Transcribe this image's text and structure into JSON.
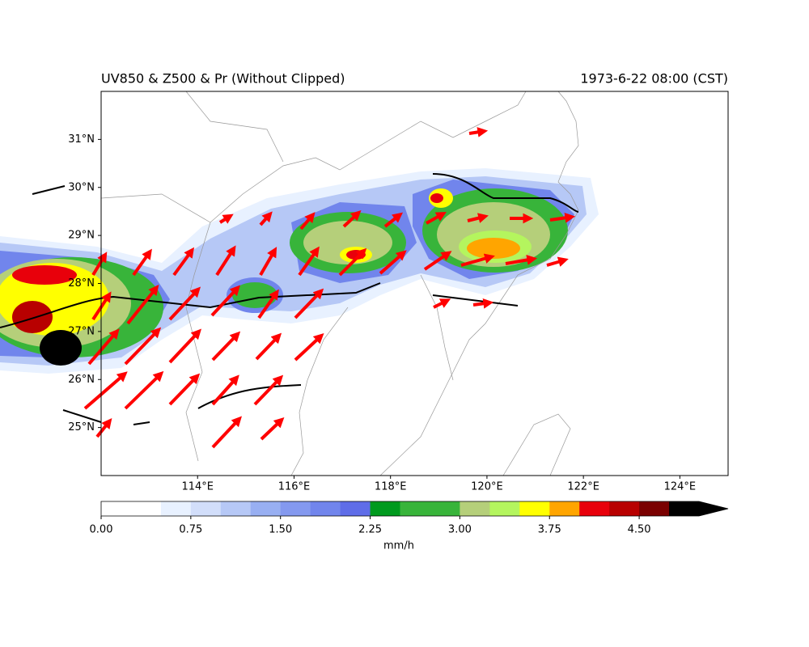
{
  "map": {
    "title_left": "UV850 & Z500 & Pr (Without Clipped)",
    "title_right": "1973-6-22 08:00 (CST)",
    "xlim": [
      112,
      125
    ],
    "ylim": [
      24,
      32
    ],
    "xticks": [
      {
        "value": 114,
        "label": "114°E"
      },
      {
        "value": 116,
        "label": "116°E"
      },
      {
        "value": 118,
        "label": "118°E"
      },
      {
        "value": 120,
        "label": "120°E"
      },
      {
        "value": 122,
        "label": "122°E"
      },
      {
        "value": 124,
        "label": "124°E"
      }
    ],
    "yticks": [
      {
        "value": 25,
        "label": "25°N"
      },
      {
        "value": 26,
        "label": "26°N"
      },
      {
        "value": 27,
        "label": "27°N"
      },
      {
        "value": 28,
        "label": "28°N"
      },
      {
        "value": 29,
        "label": "29°N"
      },
      {
        "value": 30,
        "label": "30°N"
      },
      {
        "value": 31,
        "label": "31°N"
      }
    ],
    "colorbar": {
      "label": "mm/h",
      "levels": [
        0,
        0.25,
        0.5,
        0.75,
        1,
        1.25,
        1.5,
        1.75,
        2,
        2.25,
        2.5,
        2.75,
        3,
        3.25,
        3.5,
        3.75,
        4,
        4.25,
        4.5,
        4.75,
        5
      ],
      "colors": [
        "#ffffff",
        "#ffffff",
        "#e8f1ff",
        "#d2defa",
        "#b6c8f6",
        "#98aff2",
        "#8499ef",
        "#7185ec",
        "#5f6de8",
        "#009a1e",
        "#38b43a",
        "#38b43a",
        "#b5cf7a",
        "#b4f55e",
        "#ffff00",
        "#ffa500",
        "#e8000b",
        "#b80000",
        "#7a0000",
        "#000000"
      ],
      "extend_color": "#000000",
      "ticks": [
        {
          "value": 0,
          "label": "0.00"
        },
        {
          "value": 0.75,
          "label": "0.75"
        },
        {
          "value": 1.5,
          "label": "1.50"
        },
        {
          "value": 2.25,
          "label": "2.25"
        },
        {
          "value": 3,
          "label": "3.00"
        },
        {
          "value": 3.75,
          "label": "3.75"
        },
        {
          "value": 4.5,
          "label": "4.50"
        }
      ]
    }
  }
}
